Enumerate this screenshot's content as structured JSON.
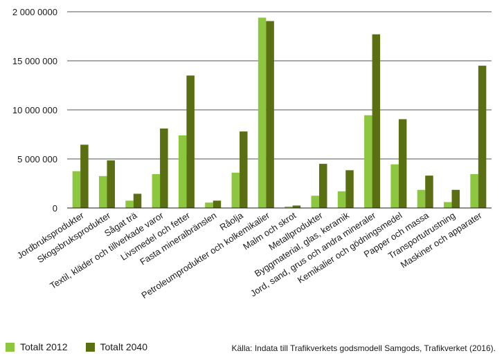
{
  "chart_data": {
    "type": "bar",
    "title": "",
    "xlabel": "",
    "ylabel": "",
    "ylim": [
      0,
      20000000
    ],
    "yticks": [
      0,
      5000000,
      10000000,
      15000000,
      20000000
    ],
    "ytick_labels": [
      "0",
      "5 000 000",
      "10 000 000",
      "15 000 000",
      "2 000 0000"
    ],
    "grid": true,
    "legend_position": "bottom-left",
    "categories": [
      "Jordbruksprodukter",
      "Skogsbruksprodukter",
      "Sågat trä",
      "Textil, kläder och tillverkade varor",
      "Livsmedel och fetter",
      "Fasta mineralbränslen",
      "Råolja",
      "Petroleumprodukter och kolkemikalier",
      "Malm och skrot",
      "Metallprodukter",
      "Byggmaterial, glas, keramik",
      "Jord, sand, grus och andra mineraler",
      "Kemikalier och gödningsmedel",
      "Papper och massa",
      "Transportutrustning",
      "Maskiner och apparater"
    ],
    "series": [
      {
        "name": "Totalt 2012",
        "color": "#8dc63f",
        "values": [
          3750000,
          3250000,
          750000,
          3450000,
          7400000,
          550000,
          3600000,
          19400000,
          150000,
          1250000,
          1700000,
          9450000,
          4450000,
          1850000,
          600000,
          3450000
        ]
      },
      {
        "name": "Totalt 2040",
        "color": "#5a6e12",
        "values": [
          6450000,
          4850000,
          1450000,
          8100000,
          13500000,
          750000,
          7800000,
          19050000,
          250000,
          4500000,
          3850000,
          17700000,
          9050000,
          3300000,
          1850000,
          14500000
        ]
      }
    ]
  },
  "source": "Källa: Indata till Trafikverkets godsmodell Samgods, Trafikverket (2016)."
}
